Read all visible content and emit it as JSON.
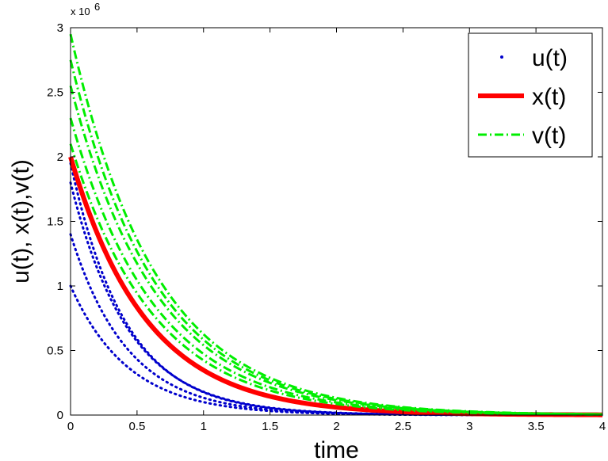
{
  "chart_data": {
    "type": "line",
    "title": "",
    "xlabel": "time",
    "ylabel": "u(t), x(t),v(t)",
    "xlim": [
      0,
      4
    ],
    "ylim": [
      0,
      3000000
    ],
    "x_ticks": [
      "0",
      "0.5",
      "1",
      "1.5",
      "2",
      "2.5",
      "3",
      "3.5",
      "4"
    ],
    "y_ticks": [
      "0",
      "0.5",
      "1",
      "1.5",
      "2",
      "2.5",
      "3"
    ],
    "y_multiplier": "x 10",
    "y_multiplier_exponent": "6",
    "grid": false,
    "legend_position": "top-right",
    "legend": [
      {
        "label": "u(t)",
        "color": "#0000cc",
        "style": "dotted"
      },
      {
        "label": "x(t)",
        "color": "#ff0000",
        "style": "solid"
      },
      {
        "label": "v(t)",
        "color": "#00ee00",
        "style": "dash-dot"
      }
    ],
    "series": [
      {
        "group": "u(t)",
        "y0": 1000000,
        "decay_rate": 2.3,
        "color": "#0000cc",
        "style": "dotted"
      },
      {
        "group": "u(t)",
        "y0": 1400000,
        "decay_rate": 2.35,
        "color": "#0000cc",
        "style": "dotted"
      },
      {
        "group": "u(t)",
        "y0": 1800000,
        "decay_rate": 2.3,
        "color": "#0000cc",
        "style": "dotted"
      },
      {
        "group": "u(t)",
        "y0": 1950000,
        "decay_rate": 2.4,
        "color": "#0000cc",
        "style": "dotted"
      },
      {
        "group": "x(t)",
        "y0": 2000000,
        "decay_rate": 1.75,
        "color": "#ff0000",
        "style": "solid"
      },
      {
        "group": "v(t)",
        "y0": 2100000,
        "decay_rate": 1.6,
        "color": "#00ee00",
        "style": "dash-dot"
      },
      {
        "group": "v(t)",
        "y0": 2300000,
        "decay_rate": 1.58,
        "color": "#00ee00",
        "style": "dash-dot"
      },
      {
        "group": "v(t)",
        "y0": 2550000,
        "decay_rate": 1.55,
        "color": "#00ee00",
        "style": "dash-dot"
      },
      {
        "group": "v(t)",
        "y0": 2750000,
        "decay_rate": 1.55,
        "color": "#00ee00",
        "style": "dash-dot"
      },
      {
        "group": "v(t)",
        "y0": 2950000,
        "decay_rate": 1.55,
        "color": "#00ee00",
        "style": "dash-dot"
      }
    ]
  }
}
